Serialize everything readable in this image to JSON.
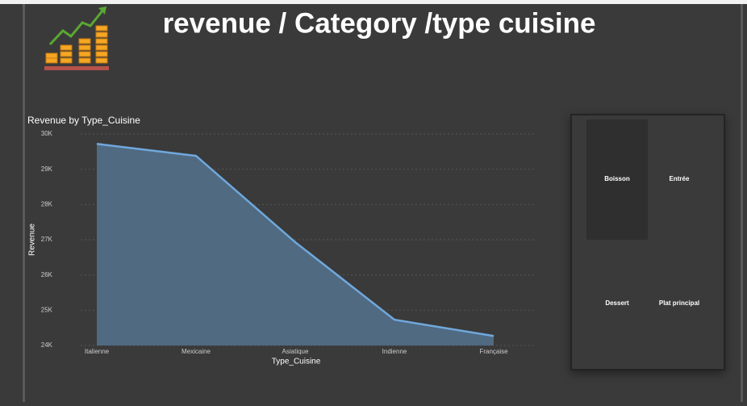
{
  "header": {
    "title": "revenue / Category /type cuisine"
  },
  "chart_data": {
    "type": "area",
    "title": "Revenue by Type_Cuisine",
    "x_label": "Type_Cuisine",
    "y_label": "Revenue",
    "categories": [
      "Italienne",
      "Mexicaine",
      "Asiatique",
      "Indienne",
      "Française"
    ],
    "values": [
      29720,
      29380,
      26930,
      24730,
      24270
    ],
    "line_color": "#6fa8dc",
    "area_color": "#506a82",
    "ylim": [
      24000,
      30000
    ],
    "yticks": [
      {
        "value": 24000,
        "label": "24K"
      },
      {
        "value": 25000,
        "label": "25K"
      },
      {
        "value": 26000,
        "label": "26K"
      },
      {
        "value": 27000,
        "label": "27K"
      },
      {
        "value": 28000,
        "label": "28K"
      },
      {
        "value": 29000,
        "label": "29K"
      },
      {
        "value": 30000,
        "label": "30K"
      }
    ],
    "grid": true
  },
  "panel": {
    "items": [
      "Boisson",
      "Entrée",
      "Dessert",
      "Plat principal"
    ]
  }
}
